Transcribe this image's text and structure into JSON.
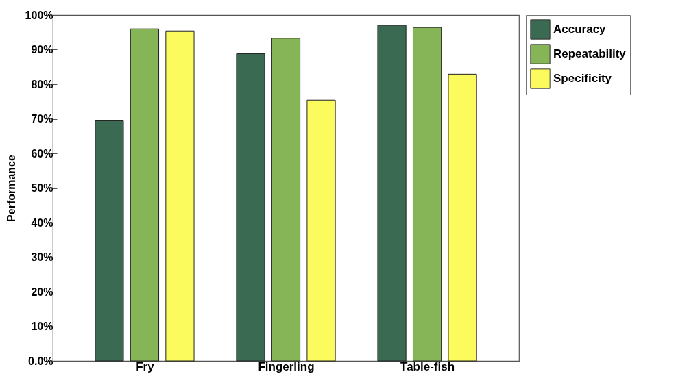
{
  "chart_data": {
    "type": "bar",
    "ylabel": "Performance",
    "categories": [
      "Fry",
      "Fingerling",
      "Table-fish"
    ],
    "series": [
      {
        "name": "Accuracy",
        "color": "#3a6b52",
        "values": [
          69.6,
          88.8,
          97.0
        ]
      },
      {
        "name": "Repeatability",
        "color": "#86b558",
        "values": [
          96.0,
          93.3,
          96.4
        ]
      },
      {
        "name": "Specificity",
        "color": "#fbfb5e",
        "values": [
          95.4,
          75.4,
          82.9
        ]
      }
    ],
    "ylim": [
      0,
      100
    ],
    "yticks": [
      {
        "value": 0,
        "label": "0.0%"
      },
      {
        "value": 10,
        "label": "10%"
      },
      {
        "value": 20,
        "label": "20%"
      },
      {
        "value": 30,
        "label": "30%"
      },
      {
        "value": 40,
        "label": "40%"
      },
      {
        "value": 50,
        "label": "50%"
      },
      {
        "value": 60,
        "label": "60%"
      },
      {
        "value": 70,
        "label": "70%"
      },
      {
        "value": 80,
        "label": "80%"
      },
      {
        "value": 90,
        "label": "90%"
      },
      {
        "value": 100,
        "label": "100%"
      }
    ],
    "grid": false,
    "legend": "top right"
  }
}
